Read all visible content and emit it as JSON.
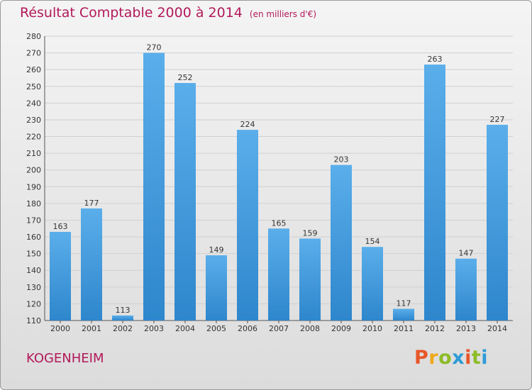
{
  "title": "Résultat Comptable 2000 à 2014",
  "subtitle": "(en milliers d'€)",
  "commune": "KOGENHEIM",
  "logo": {
    "text": "Proxiti",
    "colors": [
      "#e8562a",
      "#f0a81b",
      "#8cbc28",
      "#2e9bd6",
      "#e8562a",
      "#8cbc28",
      "#2e9bd6"
    ]
  },
  "colors": {
    "bar_light": "#5aaeea",
    "bar_dark": "#2e86cc",
    "title": "#b2195a"
  },
  "chart_data": {
    "type": "bar",
    "categories": [
      "2000",
      "2001",
      "2002",
      "2003",
      "2004",
      "2005",
      "2006",
      "2007",
      "2008",
      "2009",
      "2010",
      "2011",
      "2012",
      "2013",
      "2014"
    ],
    "values": [
      163,
      177,
      113,
      270,
      252,
      149,
      224,
      165,
      159,
      203,
      154,
      117,
      263,
      147,
      227
    ],
    "title": "Résultat Comptable 2000 à 2014",
    "ylim": [
      110,
      280
    ],
    "yticks": [
      110,
      120,
      130,
      140,
      150,
      160,
      170,
      180,
      190,
      200,
      210,
      220,
      230,
      240,
      250,
      260,
      270,
      280
    ],
    "grid": true,
    "legend": "none"
  }
}
